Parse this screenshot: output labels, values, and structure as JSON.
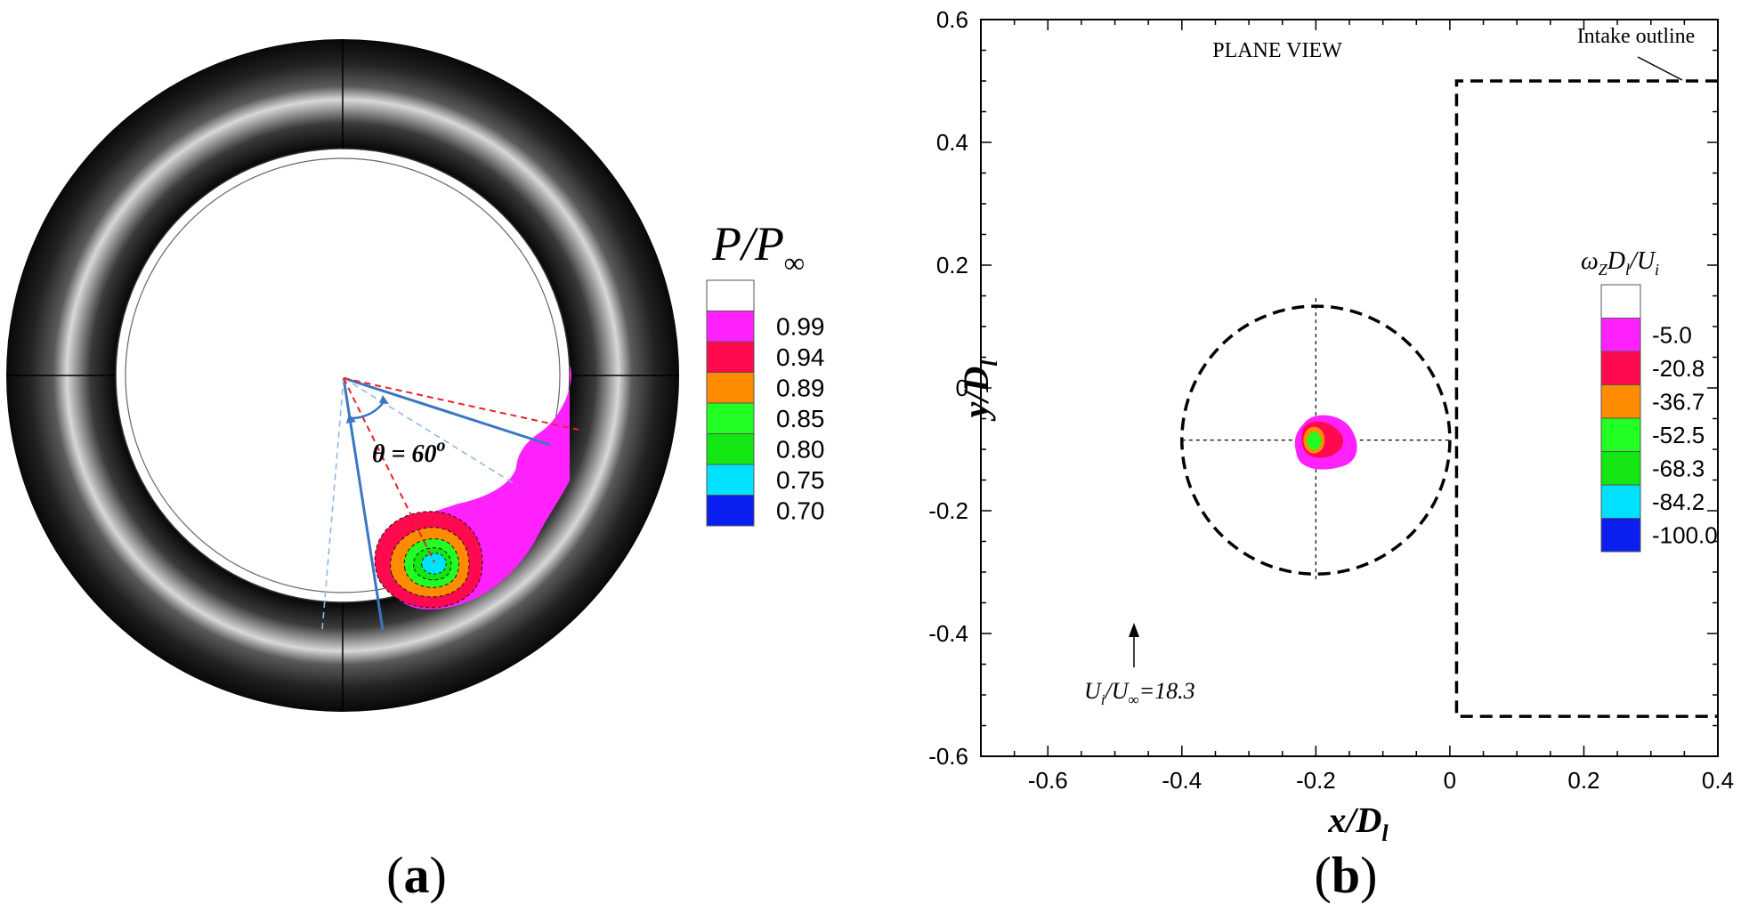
{
  "panels": {
    "a": {
      "caption": "a",
      "theta_label": "θ = 60",
      "theta_sup": "o",
      "legend": {
        "title_main": "P/P",
        "title_sub": "∞",
        "levels": [
          {
            "label": "",
            "color": "#ffffff"
          },
          {
            "label": "0.99",
            "color": "#ff22ff"
          },
          {
            "label": "0.94",
            "color": "#ff0a4e"
          },
          {
            "label": "0.89",
            "color": "#ff8c00"
          },
          {
            "label": "0.85",
            "color": "#22ff22"
          },
          {
            "label": "0.80",
            "color": "#14e614"
          },
          {
            "label": "0.75",
            "color": "#00e0ff"
          },
          {
            "label": "0.70",
            "color": "#0a1ef0"
          }
        ]
      }
    },
    "b": {
      "caption": "b",
      "plane_view_label": "PLANE VIEW",
      "intake_label": "Intake outline",
      "velocity_label_main": "U",
      "velocity_label_sub1": "i",
      "velocity_label_mid": "/U",
      "velocity_label_sub2": "∞",
      "velocity_label_tail": "=18.3",
      "legend": {
        "title_w": "ω",
        "title_z": "Z",
        "title_d": "D",
        "title_l": "l",
        "title_u": "/U",
        "title_i": "i",
        "levels": [
          {
            "label": "",
            "color": "#ffffff"
          },
          {
            "label": "-5.0",
            "color": "#ff22ff"
          },
          {
            "label": "-20.8",
            "color": "#ff0a4e"
          },
          {
            "label": "-36.7",
            "color": "#ff8c00"
          },
          {
            "label": "-52.5",
            "color": "#22ff22"
          },
          {
            "label": "-68.3",
            "color": "#14e614"
          },
          {
            "label": "-84.2",
            "color": "#00e0ff"
          },
          {
            "label": "-100.0",
            "color": "#0a1ef0"
          }
        ]
      }
    }
  },
  "chart_data": {
    "type": "contour",
    "xlabel_main": "x/D",
    "xlabel_sub": "l",
    "ylabel_main": "y/D",
    "ylabel_sub": "l",
    "xlim": [
      -0.7,
      0.4
    ],
    "ylim": [
      -0.6,
      0.6
    ],
    "xticks": [
      -0.6,
      -0.4,
      -0.2,
      0,
      0.2,
      0.4
    ],
    "yticks": [
      -0.6,
      -0.4,
      -0.2,
      0,
      0.2,
      0.4,
      0.6
    ],
    "xtick_labels": [
      "-0.6",
      "-0.4",
      "-0.2",
      "0",
      "0.2",
      "0.4"
    ],
    "ytick_labels": [
      "-0.6",
      "-0.4",
      "-0.2",
      "0",
      "0.2",
      "0.4",
      "0.6"
    ],
    "vortex_center": [
      -0.2,
      -0.085
    ],
    "vortex_circle_radius": 0.2,
    "intake_outline": [
      [
        0.4,
        0.5
      ],
      [
        0.01,
        0.5
      ],
      [
        0.01,
        -0.535
      ],
      [
        0.4,
        -0.535
      ]
    ]
  }
}
